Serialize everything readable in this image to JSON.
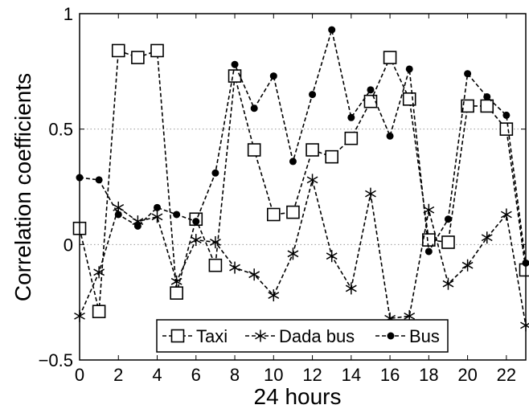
{
  "chart_data": {
    "type": "line",
    "title": "",
    "xlabel": "24 hours",
    "ylabel": "Correlation coefficients",
    "xlim": [
      0,
      23
    ],
    "ylim": [
      -0.5,
      1
    ],
    "xticks": [
      0,
      2,
      4,
      6,
      8,
      10,
      12,
      14,
      16,
      18,
      20,
      22
    ],
    "xtick_labels": [
      "0",
      "2",
      "4",
      "6",
      "8",
      "10",
      "12",
      "14",
      "16",
      "18",
      "20",
      "22"
    ],
    "yticks": [
      -0.5,
      0,
      0.5,
      1
    ],
    "ytick_labels": [
      "−0.5",
      "0",
      "0.5",
      "1"
    ],
    "grid": "dotted horizontal at 0 and 0.5",
    "legend_position": "bottom",
    "x": [
      0,
      1,
      2,
      3,
      4,
      5,
      6,
      7,
      8,
      9,
      10,
      11,
      12,
      13,
      14,
      15,
      16,
      17,
      18,
      19,
      20,
      21,
      22,
      23
    ],
    "series": [
      {
        "name": "Taxi",
        "marker": "square",
        "values": [
          0.07,
          -0.29,
          0.84,
          0.81,
          0.84,
          -0.21,
          0.11,
          -0.09,
          0.73,
          0.41,
          0.13,
          0.14,
          0.41,
          0.38,
          0.46,
          0.62,
          0.81,
          0.63,
          0.02,
          0.01,
          0.6,
          0.6,
          0.5,
          -0.11
        ]
      },
      {
        "name": "Dada bus",
        "marker": "asterisk",
        "values": [
          -0.31,
          -0.12,
          0.16,
          0.1,
          0.12,
          -0.16,
          0.02,
          0.01,
          -0.1,
          -0.13,
          -0.22,
          -0.04,
          0.28,
          -0.05,
          -0.19,
          0.22,
          -0.32,
          -0.31,
          0.15,
          -0.17,
          -0.09,
          0.03,
          0.13,
          -0.35
        ]
      },
      {
        "name": "Bus",
        "marker": "dot",
        "values": [
          0.29,
          0.28,
          0.13,
          0.08,
          0.16,
          0.13,
          0.1,
          0.31,
          0.78,
          0.59,
          0.73,
          0.36,
          0.65,
          0.93,
          0.55,
          0.67,
          0.47,
          0.76,
          -0.03,
          0.11,
          0.74,
          0.64,
          0.56,
          -0.08
        ]
      }
    ],
    "colors": {
      "line": "#000000",
      "grid": "#999999",
      "background": "#ffffff"
    }
  }
}
